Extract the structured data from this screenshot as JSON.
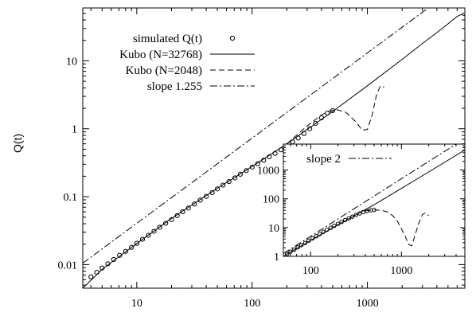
{
  "chart_data": [
    {
      "type": "line",
      "title": "",
      "xlabel": "",
      "ylabel": "Q(t)",
      "xscale": "log",
      "yscale": "log",
      "xlim": [
        3.4,
        7000
      ],
      "ylim": [
        0.0045,
        60
      ],
      "x_ticks": [
        10,
        100,
        1000
      ],
      "x_tick_labels": [
        "10",
        "100",
        "1000"
      ],
      "y_ticks": [
        0.01,
        0.1,
        1,
        10
      ],
      "y_tick_labels": [
        "0.01",
        "0.1",
        "1",
        "10"
      ],
      "legend_position": "top-left",
      "series": [
        {
          "name": "simulated Q(t)",
          "style": "open-circle-markers",
          "x": [
            4,
            4.5,
            5,
            5.6,
            6.3,
            7.1,
            8,
            9,
            10,
            11.2,
            12.6,
            14.1,
            15.8,
            17.8,
            20,
            22.4,
            25,
            28,
            31.6,
            35.5,
            40,
            45,
            50,
            56,
            63,
            71,
            79,
            89,
            100,
            112,
            126,
            141,
            158,
            178,
            200,
            224,
            251,
            282,
            316,
            355,
            400,
            450,
            500
          ],
          "y": [
            0.0066,
            0.0077,
            0.0089,
            0.0103,
            0.0119,
            0.0137,
            0.0157,
            0.018,
            0.0206,
            0.0236,
            0.027,
            0.031,
            0.0355,
            0.0405,
            0.046,
            0.0525,
            0.06,
            0.068,
            0.078,
            0.089,
            0.101,
            0.115,
            0.13,
            0.148,
            0.167,
            0.189,
            0.214,
            0.242,
            0.273,
            0.306,
            0.344,
            0.387,
            0.434,
            0.49,
            0.56,
            0.64,
            0.73,
            0.85,
            1.0,
            1.2,
            1.45,
            1.7,
            1.85
          ]
        },
        {
          "name": "Kubo (N=32768)",
          "style": "solid",
          "x": [
            3.4,
            5,
            10,
            20,
            50,
            100,
            200,
            500,
            1000,
            2000,
            3000,
            4000,
            5000,
            5500,
            6000,
            6500,
            7000
          ],
          "y": [
            0.0045,
            0.0085,
            0.0205,
            0.048,
            0.133,
            0.278,
            0.6,
            1.8,
            4.3,
            10.5,
            18,
            26,
            35,
            40,
            45,
            48,
            46
          ]
        },
        {
          "name": "Kubo (N=2048)",
          "style": "dashed",
          "x": [
            200,
            300,
            400,
            480,
            550,
            650,
            800,
            900,
            1000,
            1100,
            1200,
            1300,
            1400
          ],
          "y": [
            0.6,
            1.1,
            1.6,
            1.85,
            1.9,
            1.75,
            1.25,
            0.95,
            0.98,
            1.6,
            3.2,
            4.3,
            4.1
          ]
        },
        {
          "name": "slope 1.255",
          "style": "dash-dot",
          "x": [
            3.4,
            7000
          ],
          "y": [
            0.0105,
            150
          ]
        }
      ]
    },
    {
      "type": "line",
      "title": "",
      "xlabel": "",
      "ylabel": "",
      "xscale": "log",
      "yscale": "log",
      "xlim": [
        50,
        5000
      ],
      "ylim": [
        1,
        8000
      ],
      "x_ticks": [
        100,
        1000
      ],
      "x_tick_labels": [
        "100",
        "1000"
      ],
      "y_ticks": [
        1,
        10,
        100,
        1000
      ],
      "y_tick_labels": [
        "1",
        "10",
        "100",
        "1000"
      ],
      "legend_position": "top-left",
      "series": [
        {
          "name": "",
          "style": "open-circle-markers",
          "x": [
            55,
            60,
            66,
            72,
            79,
            87,
            95,
            105,
            115,
            126,
            138,
            151,
            166,
            182,
            200,
            219,
            240,
            263,
            288,
            316,
            347,
            380,
            417,
            457,
            500
          ],
          "y": [
            1.2,
            1.45,
            1.7,
            2.05,
            2.45,
            2.9,
            3.5,
            4.2,
            5.0,
            6.0,
            7.1,
            8.4,
            9.9,
            11.6,
            13.6,
            15.8,
            18.3,
            21,
            24,
            27.5,
            31,
            34.5,
            37.5,
            40,
            41
          ]
        },
        {
          "name": "",
          "style": "solid",
          "x": [
            50,
            100,
            200,
            500,
            1000,
            2000,
            5000
          ],
          "y": [
            1,
            3.6,
            12.5,
            62,
            230,
            860,
            5000
          ]
        },
        {
          "name": "",
          "style": "dashed",
          "x": [
            400,
            500,
            600,
            700,
            800,
            900,
            1000,
            1100,
            1200,
            1300,
            1400,
            1550,
            1700,
            1850,
            2000
          ],
          "y": [
            38,
            41,
            40,
            35,
            26,
            17,
            9,
            5,
            2.6,
            2.3,
            5,
            14,
            28,
            33,
            26
          ]
        },
        {
          "name": "slope 2",
          "style": "dash-dot",
          "x": [
            50,
            5000
          ],
          "y": [
            1.25,
            12500
          ]
        }
      ]
    }
  ]
}
